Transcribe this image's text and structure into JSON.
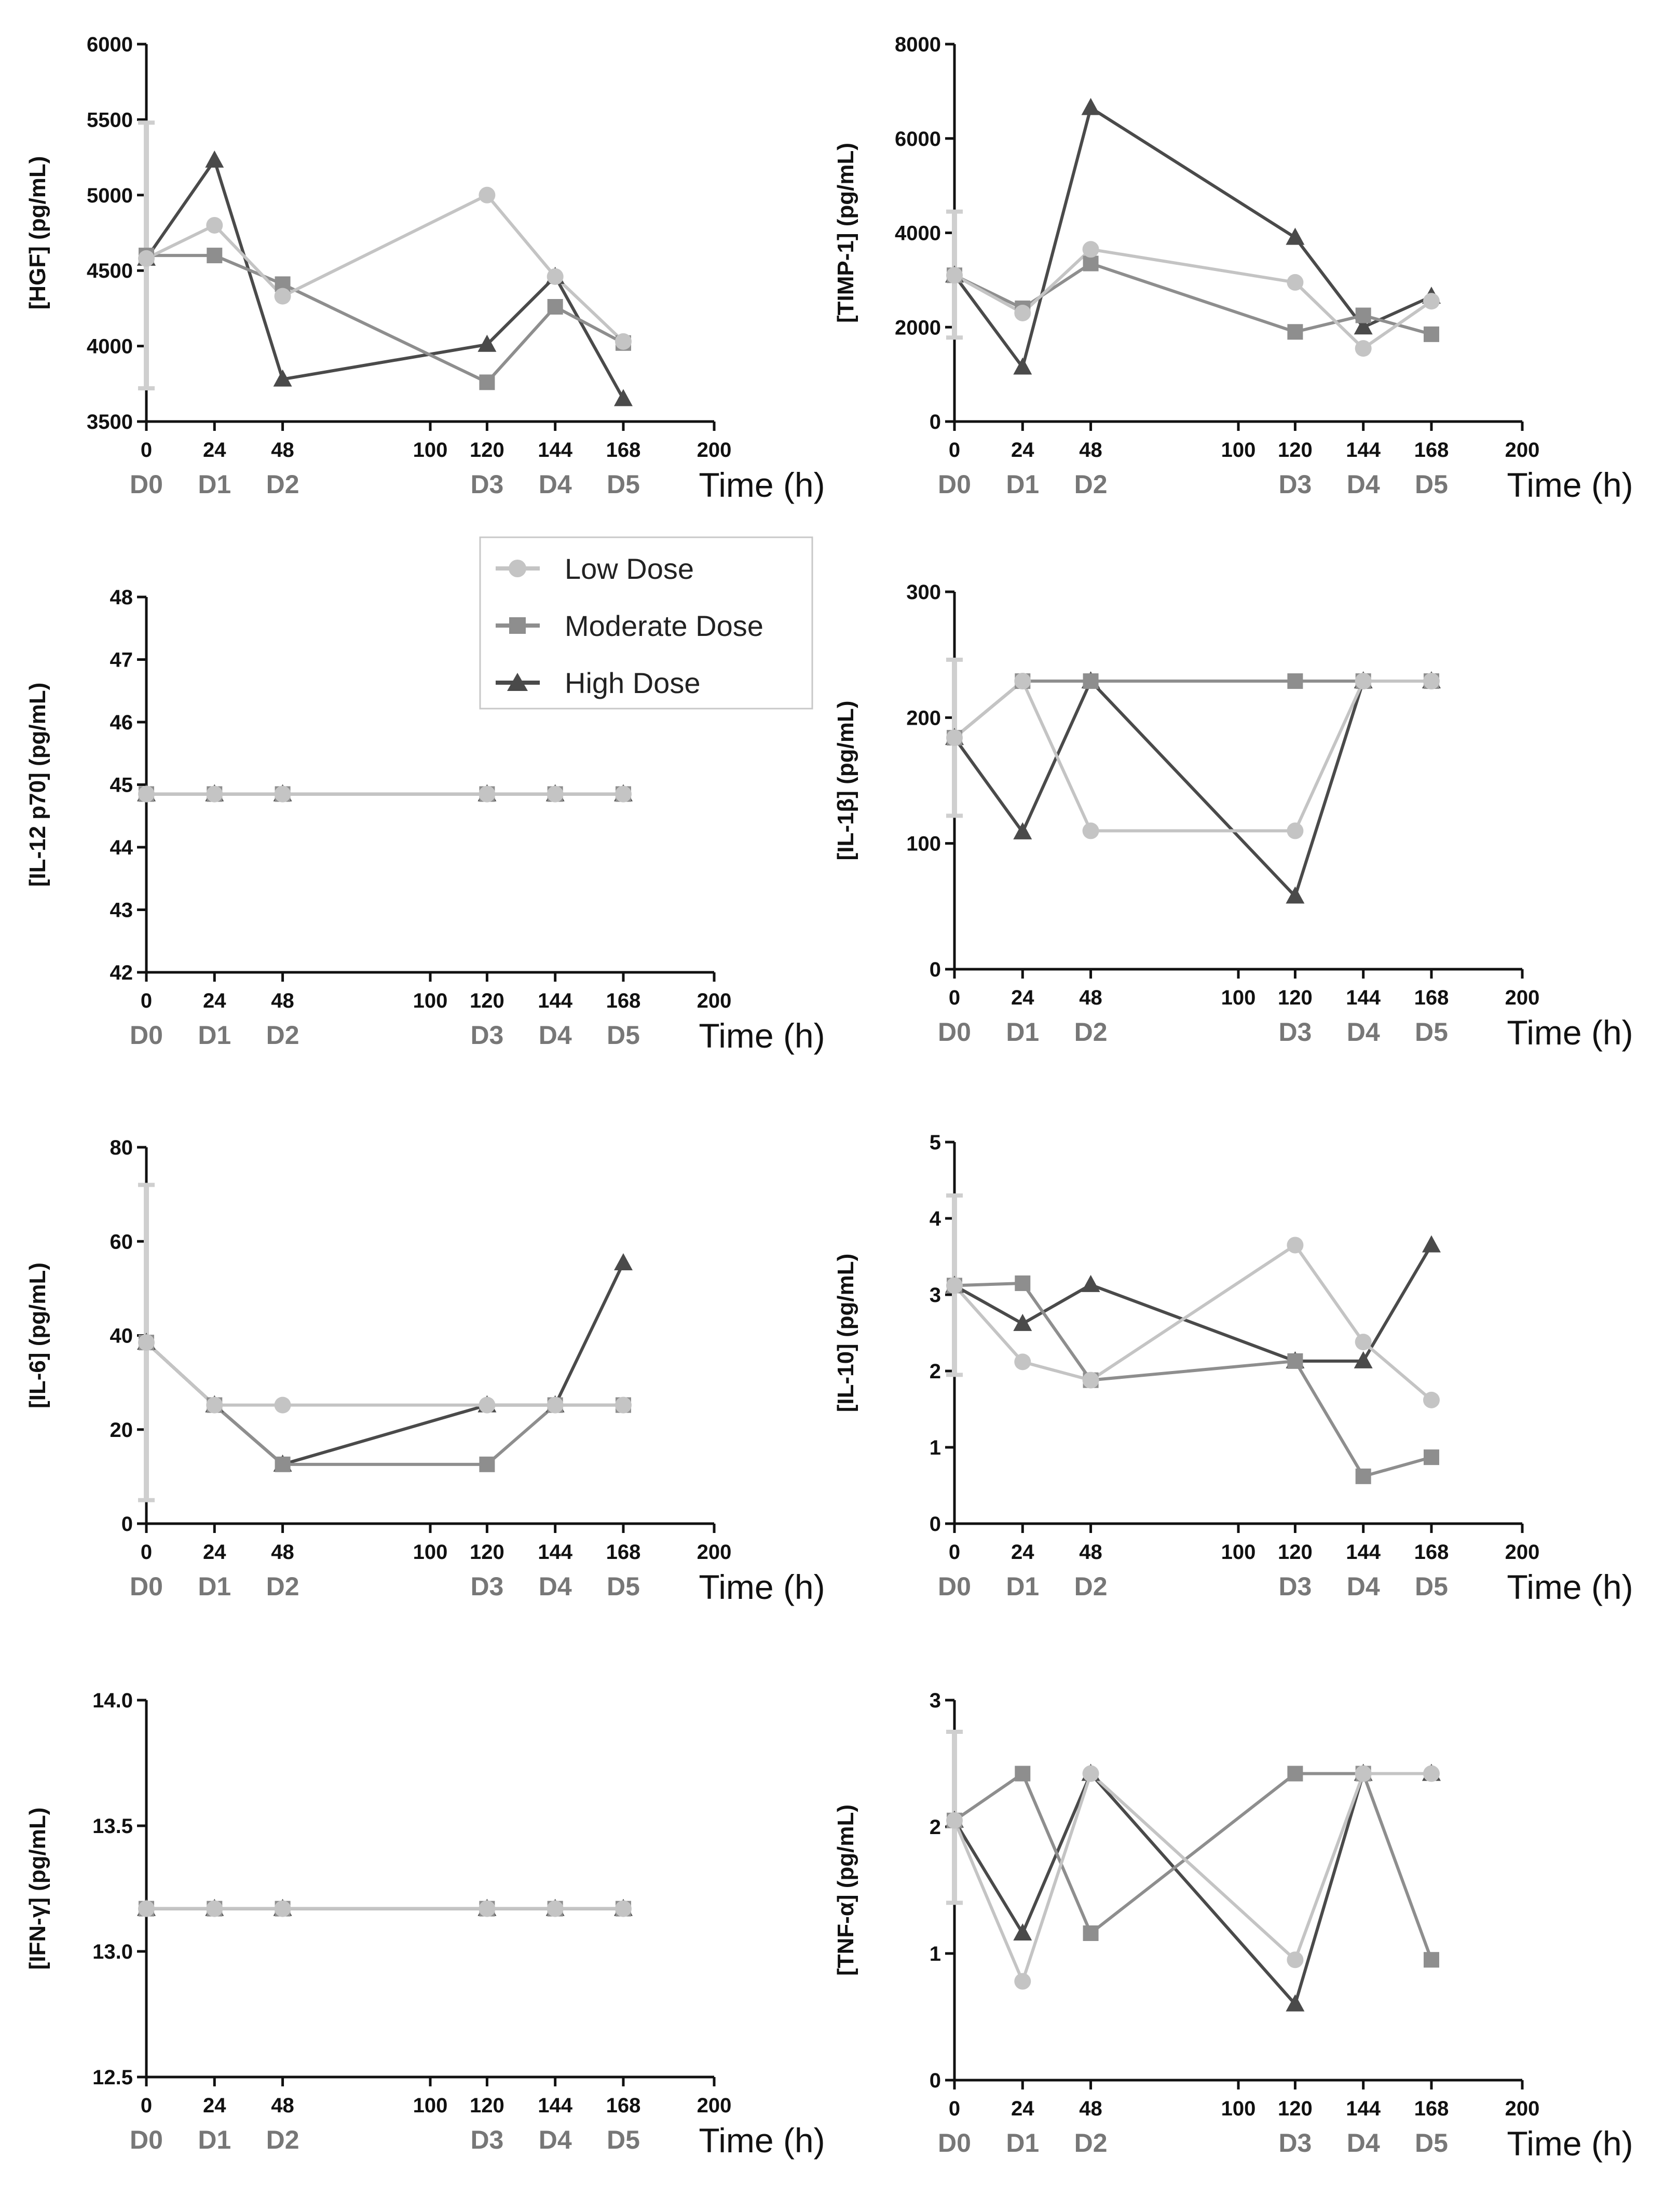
{
  "colors": {
    "low": "#c4c4c4",
    "moderate": "#8e8e8e",
    "high": "#4a4a4a",
    "axis": "#111111",
    "day": "#777777"
  },
  "legend": {
    "items": [
      {
        "label": "Low Dose",
        "marker": "circle",
        "color": "#c4c4c4"
      },
      {
        "label": "Moderate Dose",
        "marker": "square",
        "color": "#8e8e8e"
      },
      {
        "label": "High Dose",
        "marker": "triangle",
        "color": "#4a4a4a"
      }
    ]
  },
  "chart_data": [
    {
      "type": "line",
      "ylabel": "[HGF] (pg/mL)",
      "xlabel": "Time (h)",
      "xlim": [
        0,
        200
      ],
      "xticks": [
        "0",
        "24",
        "48",
        "100",
        "120",
        "144",
        "168",
        "200"
      ],
      "day_labels": [
        "D0",
        "D1",
        "D2",
        "D3",
        "D4",
        "D5"
      ],
      "ylim": [
        3500,
        6000
      ],
      "yticks": [
        "3500",
        "4000",
        "4500",
        "5000",
        "5500",
        "6000"
      ],
      "x": [
        0,
        24,
        48,
        120,
        144,
        168
      ],
      "baseline_error": [
        3720,
        5480
      ],
      "series": [
        {
          "name": "Low Dose",
          "values": [
            4580,
            4800,
            4330,
            5000,
            4460,
            4030
          ]
        },
        {
          "name": "Moderate Dose",
          "values": [
            4600,
            4600,
            4410,
            3760,
            4260,
            4020
          ]
        },
        {
          "name": "High Dose",
          "values": [
            4580,
            5230,
            3780,
            4010,
            4460,
            3650
          ]
        }
      ]
    },
    {
      "type": "line",
      "ylabel": "[TIMP-1] (pg/mL)",
      "xlabel": "Time (h)",
      "xlim": [
        0,
        200
      ],
      "xticks": [
        "0",
        "24",
        "48",
        "100",
        "120",
        "144",
        "168",
        "200"
      ],
      "day_labels": [
        "D0",
        "D1",
        "D2",
        "D3",
        "D4",
        "D5"
      ],
      "ylim": [
        0,
        8000
      ],
      "yticks": [
        "0",
        "2000",
        "4000",
        "6000",
        "8000"
      ],
      "x": [
        0,
        24,
        48,
        120,
        144,
        168
      ],
      "baseline_error": [
        1780,
        4450
      ],
      "series": [
        {
          "name": "Low Dose",
          "values": [
            3100,
            2300,
            3650,
            2950,
            1550,
            2550
          ]
        },
        {
          "name": "Moderate Dose",
          "values": [
            3100,
            2400,
            3350,
            1900,
            2250,
            1850
          ]
        },
        {
          "name": "High Dose",
          "values": [
            3100,
            1150,
            6650,
            3900,
            2000,
            2650
          ]
        }
      ]
    },
    {
      "type": "line",
      "ylabel": "[IL-12 p70] (pg/mL)",
      "xlabel": "Time (h)",
      "xlim": [
        0,
        200
      ],
      "xticks": [
        "0",
        "24",
        "48",
        "100",
        "120",
        "144",
        "168",
        "200"
      ],
      "day_labels": [
        "D0",
        "D1",
        "D2",
        "D3",
        "D4",
        "D5"
      ],
      "ylim": [
        42,
        48
      ],
      "yticks": [
        "42",
        "43",
        "44",
        "45",
        "46",
        "47",
        "48"
      ],
      "x": [
        0,
        24,
        48,
        120,
        144,
        168
      ],
      "series": [
        {
          "name": "Low Dose",
          "values": [
            44.85,
            44.85,
            44.85,
            44.85,
            44.85,
            44.85
          ]
        },
        {
          "name": "Moderate Dose",
          "values": [
            44.85,
            44.85,
            44.85,
            44.85,
            44.85,
            44.85
          ]
        },
        {
          "name": "High Dose",
          "values": [
            44.85,
            44.85,
            44.85,
            44.85,
            44.85,
            44.85
          ]
        }
      ]
    },
    {
      "type": "line",
      "ylabel": "[IL-1β] (pg/mL)",
      "xlabel": "Time (h)",
      "xlim": [
        0,
        200
      ],
      "xticks": [
        "0",
        "24",
        "48",
        "100",
        "120",
        "144",
        "168",
        "200"
      ],
      "day_labels": [
        "D0",
        "D1",
        "D2",
        "D3",
        "D4",
        "D5"
      ],
      "ylim": [
        0,
        300
      ],
      "yticks": [
        "0",
        "100",
        "200",
        "300"
      ],
      "x": [
        0,
        24,
        48,
        120,
        144,
        168
      ],
      "baseline_error": [
        122,
        246
      ],
      "series": [
        {
          "name": "Low Dose",
          "values": [
            184,
            229,
            110,
            110,
            229,
            229
          ]
        },
        {
          "name": "Moderate Dose",
          "values": [
            184,
            229,
            229,
            229,
            229,
            229
          ]
        },
        {
          "name": "High Dose",
          "values": [
            184,
            109,
            229,
            58,
            229,
            229
          ]
        }
      ]
    },
    {
      "type": "line",
      "ylabel": "[IL-6] (pg/mL)",
      "xlabel": "Time (h)",
      "xlim": [
        0,
        200
      ],
      "xticks": [
        "0",
        "24",
        "48",
        "100",
        "120",
        "144",
        "168",
        "200"
      ],
      "day_labels": [
        "D0",
        "D1",
        "D2",
        "D3",
        "D4",
        "D5"
      ],
      "ylim": [
        0,
        80
      ],
      "yticks": [
        "0",
        "20",
        "40",
        "60",
        "80"
      ],
      "x": [
        0,
        24,
        48,
        120,
        144,
        168
      ],
      "baseline_error": [
        5,
        72
      ],
      "series": [
        {
          "name": "Low Dose",
          "values": [
            38.5,
            25.2,
            25.2,
            25.2,
            25.2,
            25.2
          ]
        },
        {
          "name": "Moderate Dose",
          "values": [
            38.5,
            25.2,
            12.6,
            12.6,
            25.2,
            25.2
          ]
        },
        {
          "name": "High Dose",
          "values": [
            38.5,
            25.2,
            12.6,
            25.2,
            25.2,
            55.4
          ]
        }
      ]
    },
    {
      "type": "line",
      "ylabel": "[IL-10] (pg/mL)",
      "xlabel": "Time (h)",
      "xlim": [
        0,
        200
      ],
      "xticks": [
        "0",
        "24",
        "48",
        "100",
        "120",
        "144",
        "168",
        "200"
      ],
      "day_labels": [
        "D0",
        "D1",
        "D2",
        "D3",
        "D4",
        "D5"
      ],
      "ylim": [
        0,
        5
      ],
      "yticks": [
        "0",
        "1",
        "2",
        "3",
        "4",
        "5"
      ],
      "x": [
        0,
        24,
        48,
        120,
        144,
        168
      ],
      "baseline_error": [
        1.95,
        4.3
      ],
      "series": [
        {
          "name": "Low Dose",
          "values": [
            3.12,
            2.12,
            1.88,
            3.65,
            2.38,
            1.62
          ]
        },
        {
          "name": "Moderate Dose",
          "values": [
            3.12,
            3.15,
            1.88,
            2.13,
            0.62,
            0.87
          ]
        },
        {
          "name": "High Dose",
          "values": [
            3.12,
            2.62,
            3.13,
            2.13,
            2.13,
            3.65
          ]
        }
      ]
    },
    {
      "type": "line",
      "ylabel": "[IFN-γ] (pg/mL)",
      "xlabel": "Time (h)",
      "xlim": [
        0,
        200
      ],
      "xticks": [
        "0",
        "24",
        "48",
        "100",
        "120",
        "144",
        "168",
        "200"
      ],
      "day_labels": [
        "D0",
        "D1",
        "D2",
        "D3",
        "D4",
        "D5"
      ],
      "ylim": [
        12.5,
        14.0
      ],
      "yticks": [
        "12.5",
        "13.0",
        "13.5",
        "14.0"
      ],
      "x": [
        0,
        24,
        48,
        120,
        144,
        168
      ],
      "series": [
        {
          "name": "Low Dose",
          "values": [
            13.17,
            13.17,
            13.17,
            13.17,
            13.17,
            13.17
          ]
        },
        {
          "name": "Moderate Dose",
          "values": [
            13.17,
            13.17,
            13.17,
            13.17,
            13.17,
            13.17
          ]
        },
        {
          "name": "High Dose",
          "values": [
            13.17,
            13.17,
            13.17,
            13.17,
            13.17,
            13.17
          ]
        }
      ]
    },
    {
      "type": "line",
      "ylabel": "[TNF-α] (pg/mL)",
      "xlabel": "Time (h)",
      "xlim": [
        0,
        200
      ],
      "xticks": [
        "0",
        "24",
        "48",
        "100",
        "120",
        "144",
        "168",
        "200"
      ],
      "day_labels": [
        "D0",
        "D1",
        "D2",
        "D3",
        "D4",
        "D5"
      ],
      "ylim": [
        0,
        3
      ],
      "yticks": [
        "0",
        "1",
        "2",
        "3"
      ],
      "x": [
        0,
        24,
        48,
        120,
        144,
        168
      ],
      "baseline_error": [
        1.4,
        2.75
      ],
      "series": [
        {
          "name": "Low Dose",
          "values": [
            2.05,
            0.78,
            2.42,
            0.95,
            2.42,
            2.42
          ]
        },
        {
          "name": "Moderate Dose",
          "values": [
            2.05,
            2.42,
            1.16,
            2.42,
            2.42,
            0.95
          ]
        },
        {
          "name": "High Dose",
          "values": [
            2.05,
            1.16,
            2.42,
            0.6,
            2.42,
            2.42
          ]
        }
      ]
    }
  ]
}
